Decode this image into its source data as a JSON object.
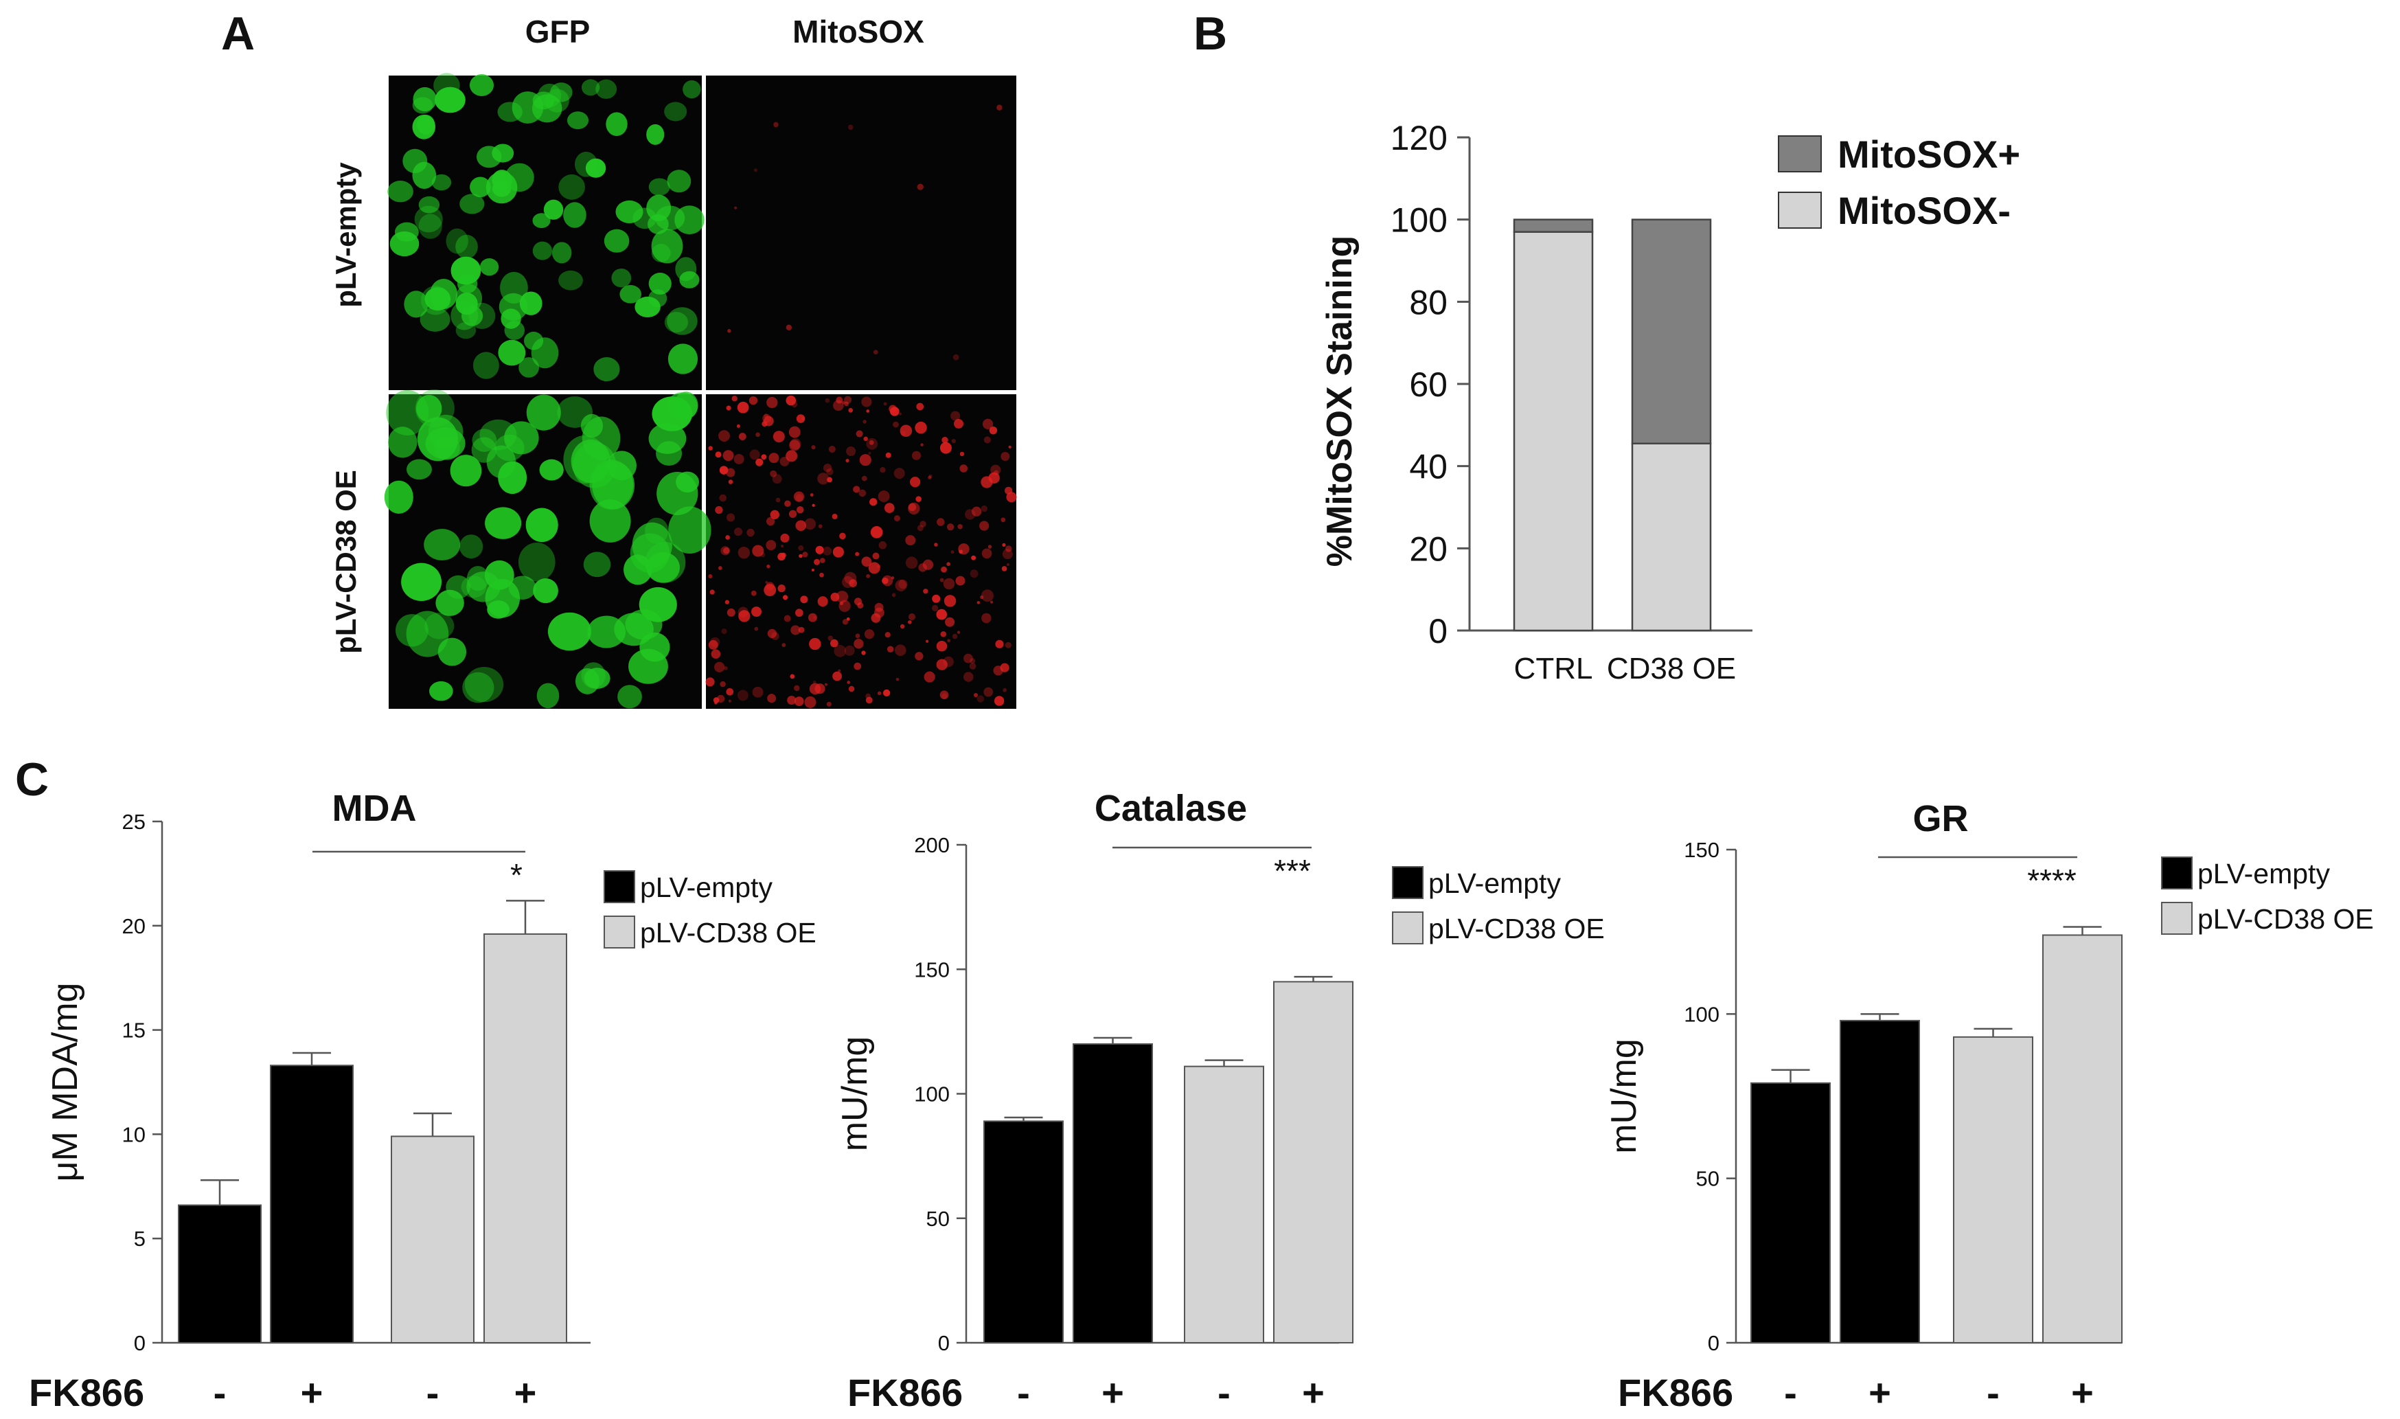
{
  "panel_labels": {
    "a": "A",
    "b": "B",
    "c": "C"
  },
  "panel_a": {
    "columns": [
      "GFP",
      "MitoSOX"
    ],
    "rows": [
      "pLV-empty",
      "pLV-CD38  OE"
    ],
    "colors": {
      "gfp": "#22c822",
      "mitosox": "#e02020",
      "background": "#050505"
    }
  },
  "chart_data": [
    {
      "type": "bar",
      "stacked": true,
      "title": "",
      "xlabel": "",
      "ylabel": "%MitoSOX Staining",
      "categories": [
        "CTRL",
        "CD38 OE"
      ],
      "series": [
        {
          "name": "MitoSOX-",
          "values": [
            97,
            45.5
          ],
          "color": "#d4d4d4"
        },
        {
          "name": "MitoSOX+",
          "values": [
            3,
            54.5
          ],
          "color": "#808080"
        }
      ],
      "ylim": [
        0,
        120
      ],
      "yticks": [
        "0",
        "20",
        "40",
        "60",
        "80",
        "100",
        "120"
      ],
      "legend": "top-right"
    },
    {
      "type": "bar",
      "title": "MDA",
      "ylabel": "μM MDA/mg",
      "xlabel": "FK866",
      "categories": [
        "-",
        "+",
        "-",
        "+"
      ],
      "values": [
        6.6,
        13.3,
        9.9,
        19.6
      ],
      "errors": [
        1.2,
        0.6,
        1.1,
        1.6
      ],
      "groups": [
        "pLV-empty",
        "pLV-empty",
        "pLV-CD38 OE",
        "pLV-CD38 OE"
      ],
      "series": [
        {
          "name": "pLV-empty",
          "color": "#000000"
        },
        {
          "name": "pLV-CD38 OE",
          "color": "#d4d4d4"
        }
      ],
      "ylim": [
        0,
        25
      ],
      "yticks": [
        "0",
        "5",
        "10",
        "15",
        "20",
        "25"
      ],
      "significance": "*",
      "legend": "top-right"
    },
    {
      "type": "bar",
      "title": "Catalase",
      "ylabel": "mU/mg",
      "xlabel": "FK866",
      "categories": [
        "-",
        "+",
        "-",
        "+"
      ],
      "values": [
        89,
        120,
        111,
        145
      ],
      "errors": [
        1.5,
        2.5,
        2.5,
        2
      ],
      "groups": [
        "pLV-empty",
        "pLV-empty",
        "pLV-CD38 OE",
        "pLV-CD38 OE"
      ],
      "series": [
        {
          "name": "pLV-empty",
          "color": "#000000"
        },
        {
          "name": "pLV-CD38 OE",
          "color": "#d4d4d4"
        }
      ],
      "ylim": [
        0,
        200
      ],
      "yticks": [
        "0",
        "50",
        "100",
        "150",
        "200"
      ],
      "significance": "***",
      "legend": "top-right"
    },
    {
      "type": "bar",
      "title": "GR",
      "ylabel": "mU/mg",
      "xlabel": "FK866",
      "categories": [
        "-",
        "+",
        "-",
        "+"
      ],
      "values": [
        79,
        98,
        93,
        124
      ],
      "errors": [
        4,
        2,
        2.5,
        2.5
      ],
      "groups": [
        "pLV-empty",
        "pLV-empty",
        "pLV-CD38 OE",
        "pLV-CD38 OE"
      ],
      "series": [
        {
          "name": "pLV-empty",
          "color": "#000000"
        },
        {
          "name": "pLV-CD38 OE",
          "color": "#d4d4d4"
        }
      ],
      "ylim": [
        0,
        150
      ],
      "yticks": [
        "0",
        "50",
        "100",
        "150"
      ],
      "significance": "****",
      "legend": "top-right"
    }
  ]
}
